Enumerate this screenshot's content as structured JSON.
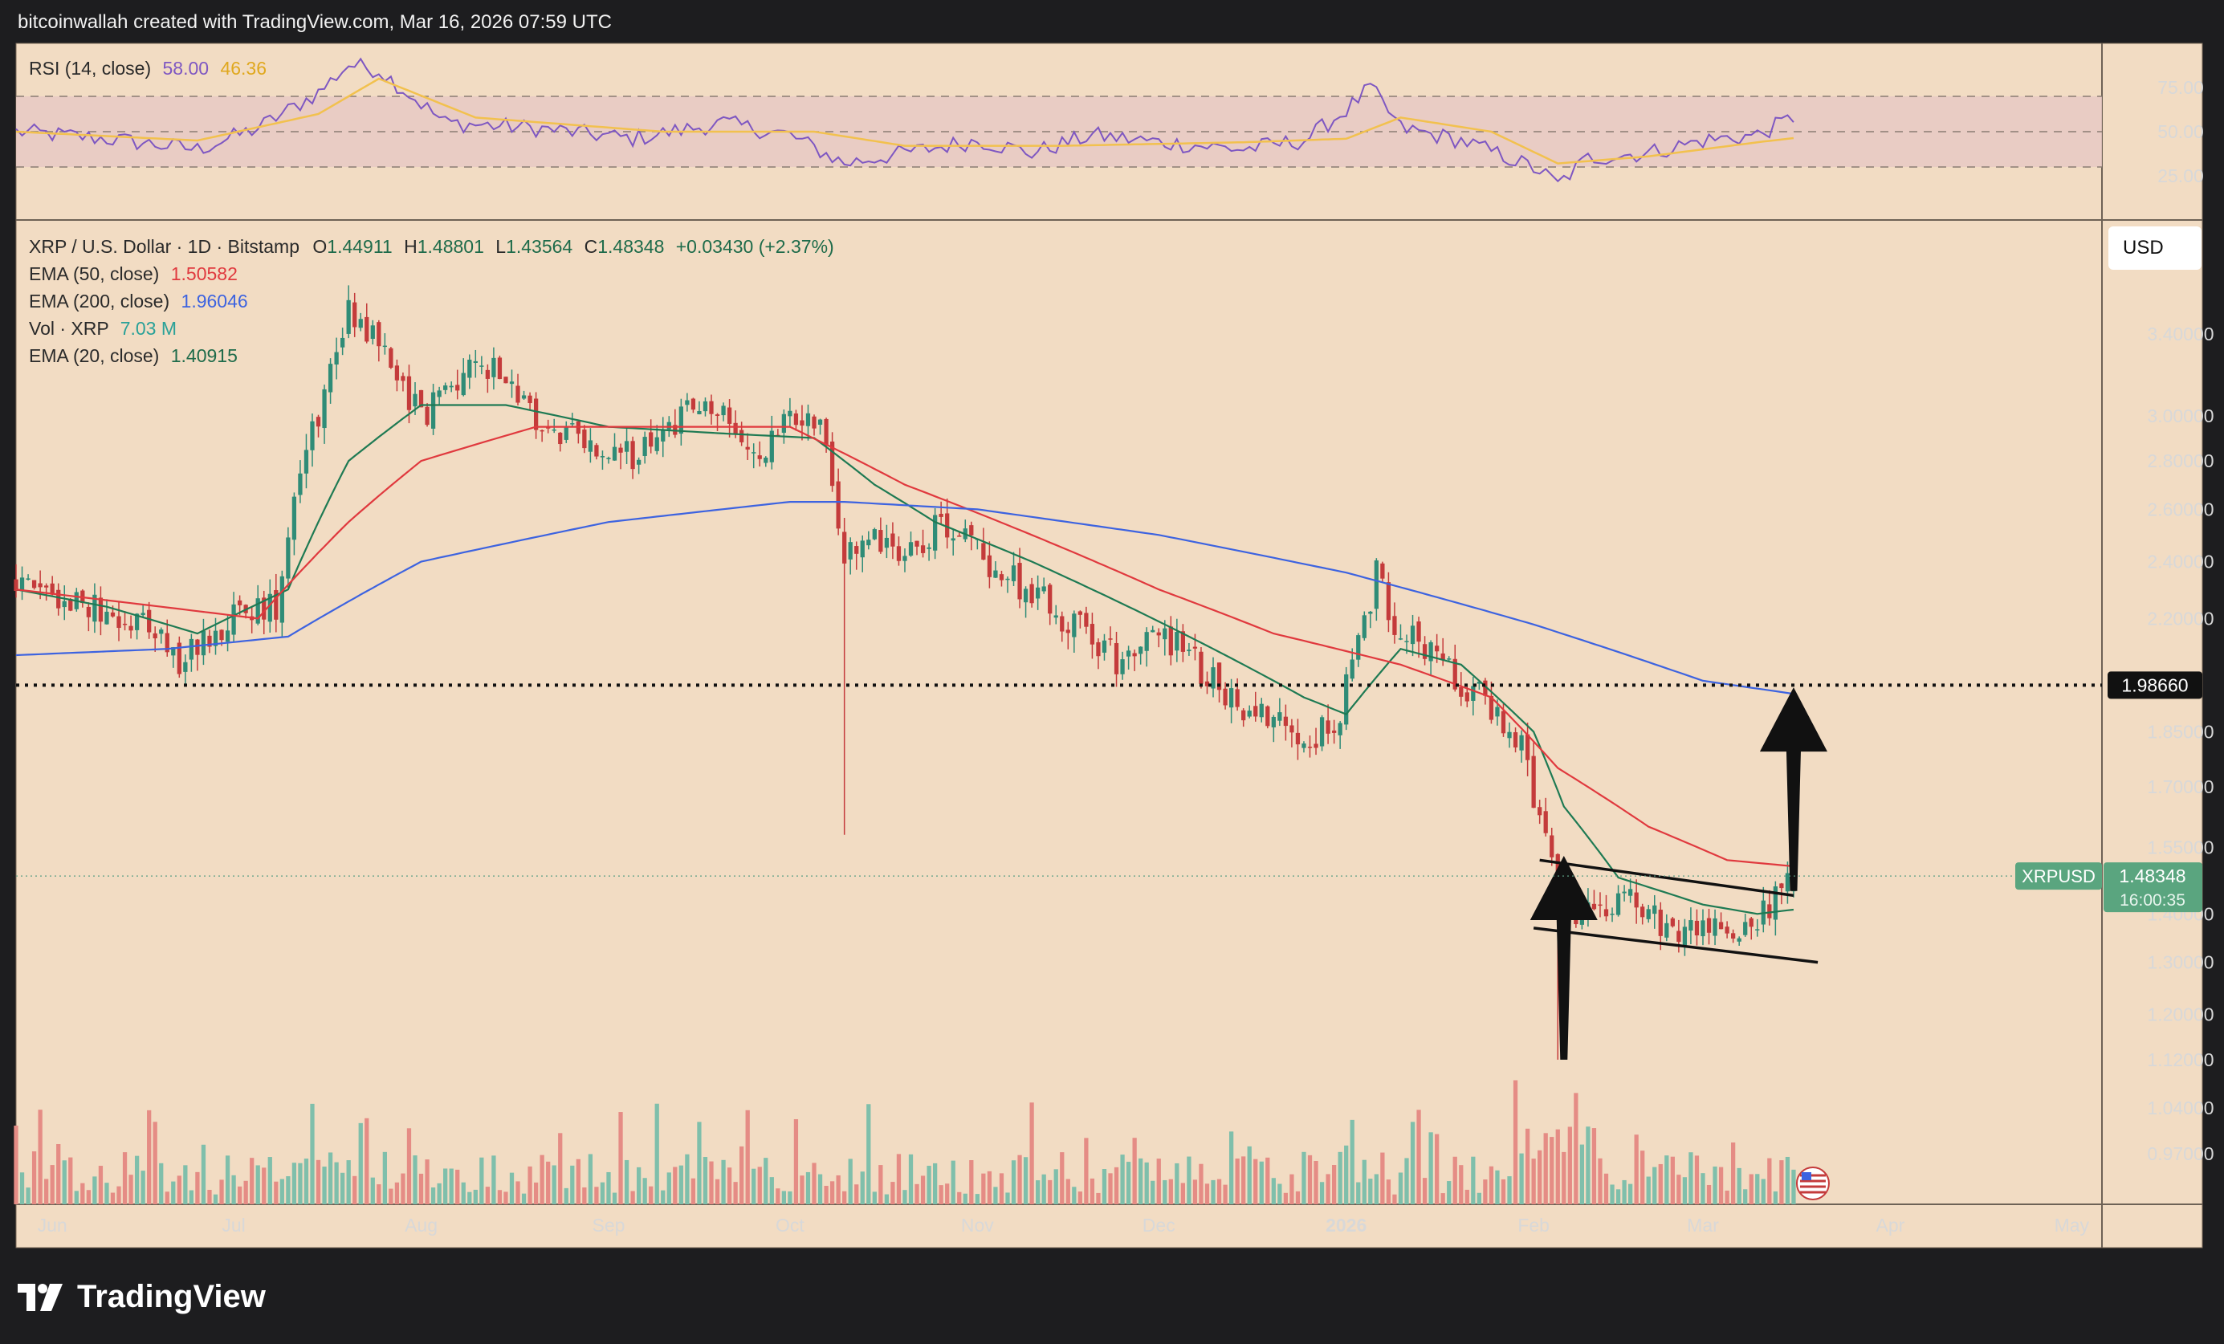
{
  "header": {
    "credit": "bitcoinwallah created with TradingView.com, Mar 16, 2026 07:59 UTC"
  },
  "rsi_legend": {
    "label": "RSI (14, close)",
    "value": "58.00",
    "ma_value": "46.36"
  },
  "main_legend": {
    "symbol": "XRP / U.S. Dollar · 1D · Bitstamp",
    "o_label": "O",
    "open": "1.44911",
    "h_label": "H",
    "high": "1.48801",
    "l_label": "L",
    "low": "1.43564",
    "c_label": "C",
    "close": "1.48348",
    "change": "+0.03430 (+2.37%)",
    "ema50_label": "EMA (50, close)",
    "ema50_value": "1.50582",
    "ema200_label": "EMA (200, close)",
    "ema200_value": "1.96046",
    "vol_label": "Vol · XRP",
    "vol_value": "7.03 M",
    "ema20_label": "EMA (20, close)",
    "ema20_value": "1.40915"
  },
  "currency_button": "USD",
  "price_tag": {
    "symbol": "XRPUSD",
    "price": "1.48348",
    "countdown": "16:00:35"
  },
  "level_tag": "1.98660",
  "footer": {
    "brand": "TradingView"
  },
  "colors": {
    "background": "#f2dcc3",
    "up": "#2f8c77",
    "down": "#c43b3b",
    "ema20": "#1e7a53",
    "ema50": "#e0393e",
    "ema200": "#3d63e0",
    "rsi": "#7e57c2",
    "rsi_ma": "#f2c14e",
    "vol_up": "#7fbfab",
    "vol_down": "#e58c85"
  },
  "chart_data": [
    {
      "type": "line",
      "title": "RSI (14, close)",
      "ylim": [
        0,
        100
      ],
      "y_ticks": [
        "75.00",
        "50.00",
        "25.00"
      ],
      "y_tick_values": [
        75,
        50,
        25
      ],
      "bands": [
        30,
        50,
        70
      ],
      "series": [
        {
          "name": "RSI (14, close)",
          "x": [
            "May 26",
            "Jun 10",
            "Jun 25",
            "Jul 5",
            "Jul 15",
            "Jul 20",
            "Jul 25",
            "Aug 5",
            "Aug 20",
            "Sep 5",
            "Sep 20",
            "Oct 1",
            "Oct 10",
            "Oct 20",
            "Nov 1",
            "Nov 10",
            "Nov 20",
            "Dec 1",
            "Dec 15",
            "Dec 25",
            "Jan 1",
            "Jan 5",
            "Jan 10",
            "Jan 20",
            "Jan 28",
            "Feb 2",
            "Feb 5",
            "Feb 10",
            "Feb 20",
            "Mar 1",
            "Mar 10",
            "Mar 16"
          ],
          "values": [
            50,
            46,
            40,
            52,
            72,
            88,
            85,
            55,
            52,
            46,
            55,
            48,
            32,
            38,
            45,
            38,
            48,
            44,
            40,
            45,
            62,
            75,
            52,
            45,
            35,
            28,
            20,
            35,
            38,
            45,
            48,
            58
          ]
        },
        {
          "name": "RSI MA",
          "x": [
            "May 26",
            "Jun 25",
            "Jul 15",
            "Jul 25",
            "Aug 10",
            "Sep 10",
            "Oct 5",
            "Oct 20",
            "Nov 15",
            "Dec 15",
            "Jan 1",
            "Jan 10",
            "Jan 25",
            "Feb 5",
            "Feb 20",
            "Mar 10",
            "Mar 16"
          ],
          "values": [
            50,
            45,
            60,
            80,
            58,
            50,
            50,
            42,
            42,
            44,
            46,
            58,
            50,
            32,
            36,
            44,
            46.36
          ]
        }
      ]
    },
    {
      "type": "candlestick",
      "title": "XRP / U.S. Dollar · 1D · Bitstamp",
      "y_scale": "log",
      "ylim": [
        0.92,
        3.95
      ],
      "y_ticks": [
        "3.40000",
        "3.00000",
        "2.80000",
        "2.60000",
        "2.40000",
        "2.20000",
        "1.85000",
        "1.70000",
        "1.55000",
        "1.40000",
        "1.30000",
        "1.20000",
        "1.12000",
        "1.04000",
        "0.97000"
      ],
      "y_tick_values": [
        3.4,
        3.0,
        2.8,
        2.6,
        2.4,
        2.2,
        1.85,
        1.7,
        1.55,
        1.4,
        1.3,
        1.2,
        1.12,
        1.04,
        0.97
      ],
      "x_ticks": [
        "Jun",
        "Jul",
        "Aug",
        "Sep",
        "Oct",
        "Nov",
        "Dec",
        "2026",
        "Feb",
        "Mar",
        "Apr",
        "May"
      ],
      "x_tick_dates": [
        "2025-06-01",
        "2025-07-01",
        "2025-08-01",
        "2025-09-01",
        "2025-10-01",
        "2025-11-01",
        "2025-12-01",
        "2026-01-01",
        "2026-02-01",
        "2026-03-01",
        "2026-04-01",
        "2026-05-01"
      ],
      "close_path": {
        "dates": [
          "2025-05-26",
          "2025-06-05",
          "2025-06-15",
          "2025-06-22",
          "2025-06-30",
          "2025-07-08",
          "2025-07-12",
          "2025-07-16",
          "2025-07-20",
          "2025-07-24",
          "2025-08-01",
          "2025-08-08",
          "2025-08-14",
          "2025-08-20",
          "2025-08-26",
          "2025-09-01",
          "2025-09-08",
          "2025-09-14",
          "2025-09-20",
          "2025-09-26",
          "2025-10-02",
          "2025-10-06",
          "2025-10-10",
          "2025-10-14",
          "2025-10-20",
          "2025-10-27",
          "2025-11-01",
          "2025-11-05",
          "2025-11-10",
          "2025-11-15",
          "2025-11-20",
          "2025-11-25",
          "2025-12-01",
          "2025-12-05",
          "2025-12-10",
          "2025-12-15",
          "2025-12-20",
          "2025-12-25",
          "2025-12-30",
          "2026-01-03",
          "2026-01-06",
          "2026-01-10",
          "2026-01-15",
          "2026-01-20",
          "2026-01-26",
          "2026-01-30",
          "2026-02-02",
          "2026-02-05",
          "2026-02-08",
          "2026-02-12",
          "2026-02-16",
          "2026-02-20",
          "2026-02-24",
          "2026-02-28",
          "2026-03-04",
          "2026-03-08",
          "2026-03-12",
          "2026-03-16"
        ],
        "values": [
          2.33,
          2.25,
          2.2,
          2.05,
          2.2,
          2.25,
          2.8,
          3.1,
          3.55,
          3.4,
          3.0,
          3.2,
          3.25,
          2.95,
          2.9,
          2.8,
          2.85,
          3.05,
          2.98,
          2.82,
          3.0,
          2.95,
          2.4,
          2.5,
          2.45,
          2.55,
          2.45,
          2.35,
          2.3,
          2.2,
          2.15,
          2.05,
          2.15,
          2.1,
          2.0,
          1.92,
          1.9,
          1.85,
          1.85,
          2.1,
          2.35,
          2.15,
          2.1,
          2.0,
          1.9,
          1.8,
          1.6,
          1.45,
          1.38,
          1.42,
          1.45,
          1.4,
          1.35,
          1.38,
          1.36,
          1.38,
          1.42,
          1.48
        ]
      },
      "ohlc_last": {
        "open": 1.44911,
        "high": 1.48801,
        "low": 1.43564,
        "close": 1.48348
      },
      "series": [
        {
          "name": "EMA (20, close)",
          "dates": [
            "2025-05-26",
            "2025-06-10",
            "2025-06-25",
            "2025-07-10",
            "2025-07-20",
            "2025-08-01",
            "2025-08-15",
            "2025-09-01",
            "2025-09-20",
            "2025-10-05",
            "2025-10-15",
            "2025-10-25",
            "2025-11-10",
            "2025-11-25",
            "2025-12-10",
            "2025-12-25",
            "2026-01-01",
            "2026-01-10",
            "2026-01-20",
            "2026-02-01",
            "2026-02-06",
            "2026-02-15",
            "2026-03-01",
            "2026-03-10",
            "2026-03-16"
          ],
          "values": [
            2.3,
            2.24,
            2.15,
            2.3,
            2.8,
            3.05,
            3.05,
            2.95,
            2.92,
            2.9,
            2.7,
            2.55,
            2.4,
            2.25,
            2.1,
            1.95,
            1.9,
            2.1,
            2.05,
            1.85,
            1.65,
            1.48,
            1.42,
            1.4,
            1.40915
          ]
        },
        {
          "name": "EMA (50, close)",
          "dates": [
            "2025-05-26",
            "2025-06-15",
            "2025-07-05",
            "2025-07-20",
            "2025-08-01",
            "2025-08-20",
            "2025-09-10",
            "2025-10-01",
            "2025-10-20",
            "2025-11-10",
            "2025-12-01",
            "2025-12-20",
            "2026-01-10",
            "2026-01-25",
            "2026-02-05",
            "2026-02-20",
            "2026-03-05",
            "2026-03-16"
          ],
          "values": [
            2.3,
            2.25,
            2.2,
            2.55,
            2.8,
            2.95,
            2.95,
            2.95,
            2.7,
            2.5,
            2.3,
            2.15,
            2.05,
            1.95,
            1.75,
            1.6,
            1.52,
            1.50582
          ]
        },
        {
          "name": "EMA (200, close)",
          "dates": [
            "2025-05-26",
            "2025-06-20",
            "2025-07-10",
            "2025-08-01",
            "2025-09-01",
            "2025-10-01",
            "2025-10-10",
            "2025-11-01",
            "2025-12-01",
            "2026-01-01",
            "2026-02-01",
            "2026-03-01",
            "2026-03-16"
          ],
          "values": [
            2.08,
            2.1,
            2.14,
            2.4,
            2.55,
            2.63,
            2.63,
            2.6,
            2.5,
            2.36,
            2.18,
            2.0,
            1.96046
          ]
        }
      ],
      "volume": {
        "name": "Vol · XRP",
        "last": "7.03 M"
      },
      "annotations": [
        {
          "kind": "horizontal-dotted-line",
          "value": 1.9866,
          "label": "1.98660"
        },
        {
          "kind": "channel-upper",
          "from": [
            "2026-02-02",
            1.52
          ],
          "to": [
            "2026-03-16",
            1.44
          ]
        },
        {
          "kind": "channel-lower",
          "from": [
            "2026-02-01",
            1.37
          ],
          "to": [
            "2026-03-20",
            1.3
          ]
        },
        {
          "kind": "arrow-up",
          "from": [
            "2026-02-06",
            1.12
          ],
          "to": [
            "2026-02-06",
            1.53
          ]
        },
        {
          "kind": "arrow-up",
          "from": [
            "2026-03-16",
            1.45
          ],
          "to": [
            "2026-03-16",
            1.98
          ]
        }
      ]
    }
  ]
}
